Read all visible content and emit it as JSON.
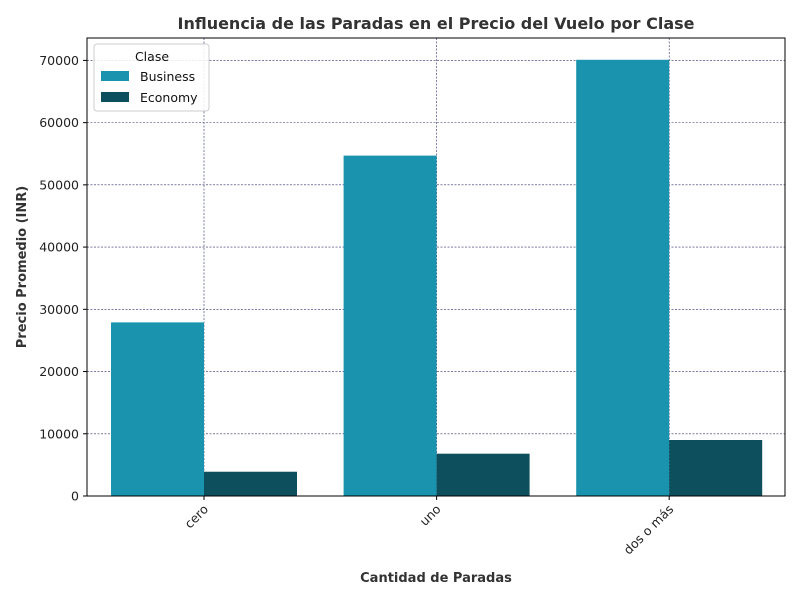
{
  "chart_data": {
    "type": "bar",
    "title": "Influencia de las Paradas en el Precio del Vuelo por Clase",
    "xlabel": "Cantidad de Paradas",
    "ylabel": "Precio Promedio (INR)",
    "categories": [
      "cero",
      "uno",
      "dos o más"
    ],
    "series": [
      {
        "name": "Business",
        "color": "#1a94ae",
        "values": [
          27900,
          54700,
          70100
        ]
      },
      {
        "name": "Economy",
        "color": "#0d4f5c",
        "values": [
          3900,
          6800,
          9000
        ]
      }
    ],
    "ylim": [
      0,
      73600
    ],
    "yticks": [
      0,
      10000,
      20000,
      30000,
      40000,
      50000,
      60000,
      70000
    ],
    "ytick_labels": [
      "0",
      "10000",
      "20000",
      "30000",
      "40000",
      "50000",
      "60000",
      "70000"
    ],
    "grid": true,
    "grid_color": "#2e2e6e",
    "legend": {
      "title": "Clase",
      "placement": "top-left"
    },
    "xtick_rotation_deg": 45
  }
}
